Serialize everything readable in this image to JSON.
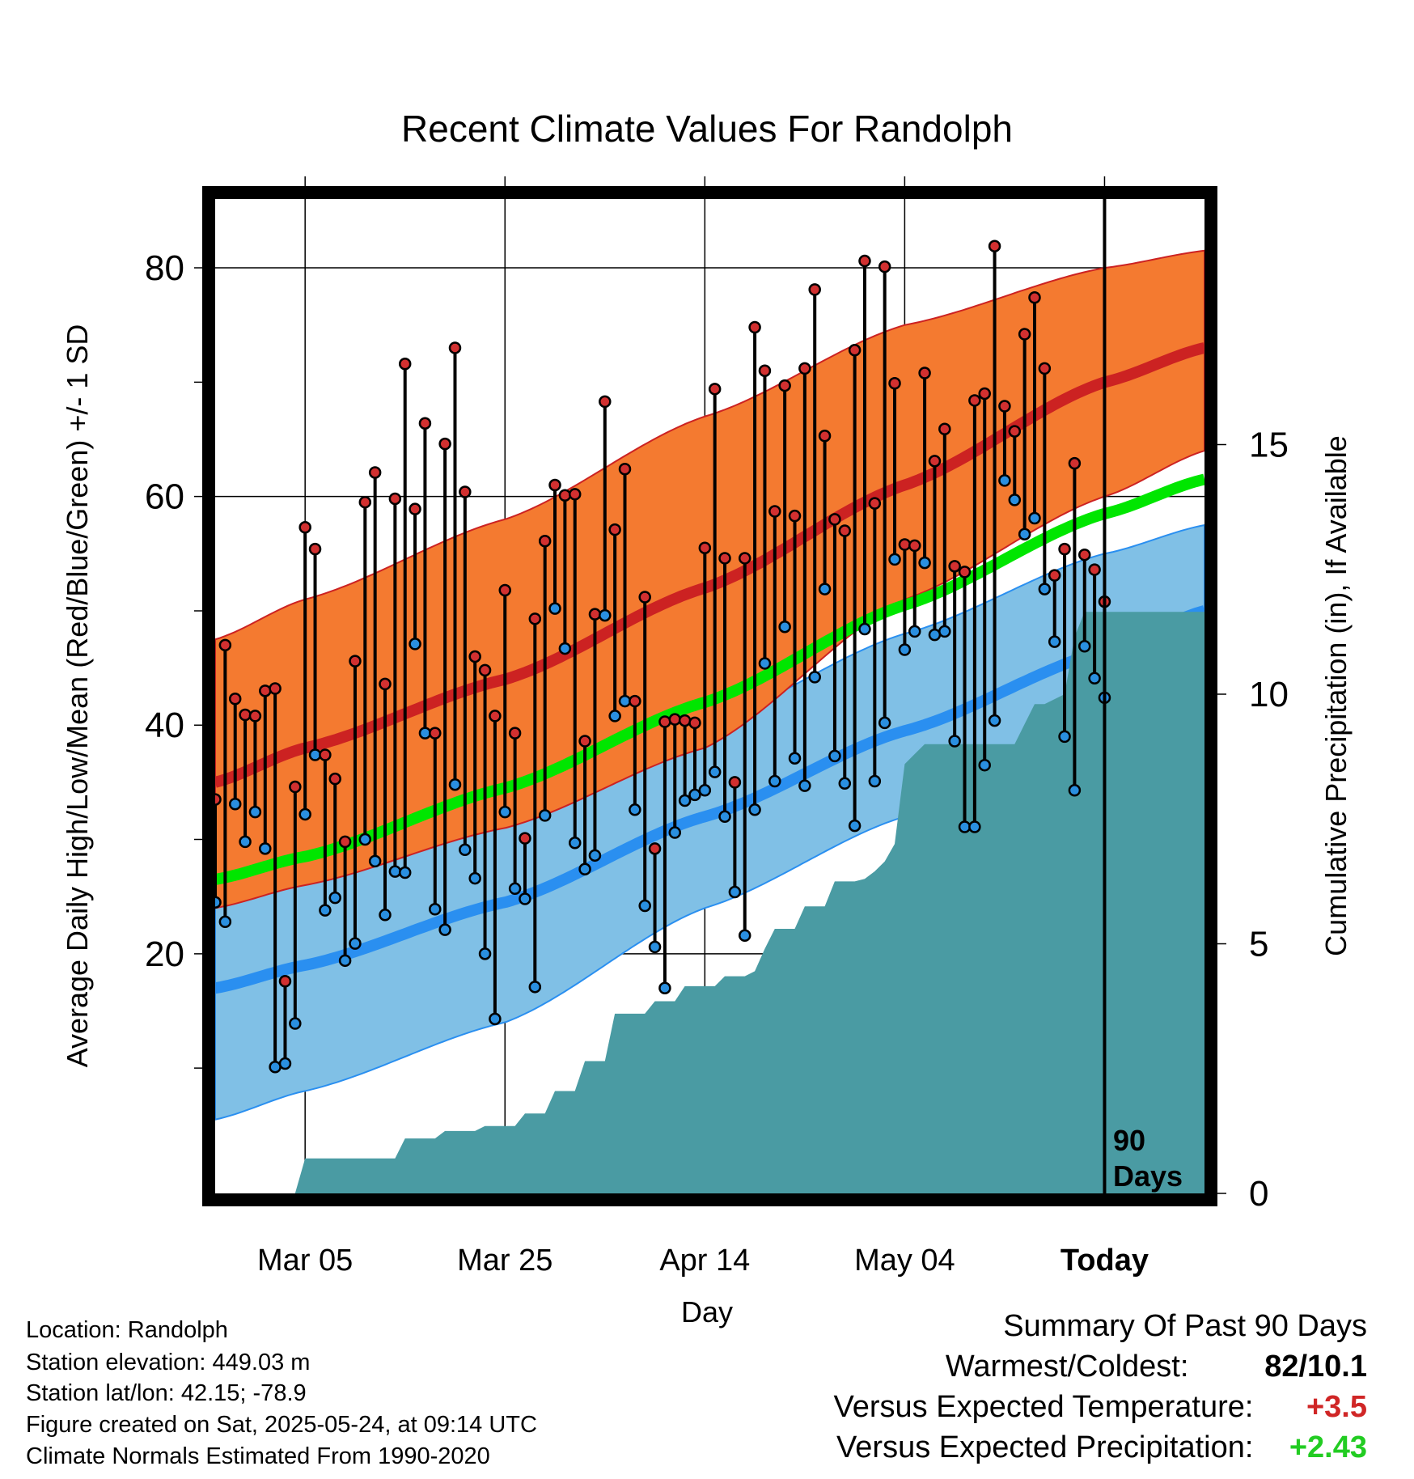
{
  "chart_data": {
    "type": "line",
    "title": "Recent Climate Values For Randolph",
    "xlabel": "Day",
    "ylabel": "Average Daily High/Low/Mean (Red/Blue/Green) +/- 1 SD",
    "ylabel_right": "Cumulative Precipitation (in), If Available",
    "x_ticks": [
      "Mar 05",
      "Mar 25",
      "Apr 14",
      "May 04",
      "Today"
    ],
    "y_ticks": [
      "20",
      "40",
      "60",
      "80"
    ],
    "y2_ticks": [
      "0",
      "5",
      "10",
      "15"
    ],
    "ylim": [
      0,
      88
    ],
    "y2lim": [
      0,
      15
    ],
    "grid": true,
    "x_start": "2025-02-24",
    "x_end": "2025-06-03",
    "today": "2025-05-24",
    "today_label": [
      "90",
      "Days"
    ],
    "colors": {
      "high_band": "#f47a30",
      "high_line": "#cc2222",
      "low_band": "#80c0e6",
      "low_line": "#2a8ff0",
      "mean_line": "#00e600",
      "precip": "#4a9ba3",
      "high_dot": "#d23030",
      "low_dot": "#2a8fe0"
    },
    "normals": {
      "x": [
        "2025-02-24",
        "2025-03-05",
        "2025-03-25",
        "2025-04-14",
        "2025-05-04",
        "2025-05-24",
        "2025-06-03"
      ],
      "high_mean": [
        35,
        38,
        44,
        52,
        61,
        70,
        73
      ],
      "high_upper": [
        47.5,
        51,
        58,
        67,
        75,
        80,
        81.5
      ],
      "high_lower": [
        24,
        26,
        31,
        38,
        51,
        60,
        64
      ],
      "low_mean": [
        17,
        19,
        24.5,
        32,
        39.5,
        46.5,
        50
      ],
      "low_upper": [
        28.5,
        31,
        35,
        40,
        48,
        55,
        57.5
      ],
      "low_lower": [
        5.5,
        8,
        14,
        24,
        32,
        38.5,
        42
      ],
      "mean": [
        26.5,
        28.5,
        34.5,
        42,
        50.5,
        58.5,
        61.5
      ]
    },
    "days": [
      {
        "date": "2025-02-24",
        "high": 33.5,
        "low": 24.5
      },
      {
        "date": "2025-02-25",
        "high": 47.0,
        "low": 22.8
      },
      {
        "date": "2025-02-26",
        "high": 42.3,
        "low": 33.1
      },
      {
        "date": "2025-02-27",
        "high": 40.9,
        "low": 29.8
      },
      {
        "date": "2025-02-28",
        "high": 40.8,
        "low": 32.4
      },
      {
        "date": "2025-03-01",
        "high": 43.0,
        "low": 29.2
      },
      {
        "date": "2025-03-02",
        "high": 43.2,
        "low": 10.1
      },
      {
        "date": "2025-03-03",
        "high": 17.6,
        "low": 10.4
      },
      {
        "date": "2025-03-04",
        "high": 34.6,
        "low": 13.9
      },
      {
        "date": "2025-03-05",
        "high": 57.3,
        "low": 32.2
      },
      {
        "date": "2025-03-06",
        "high": 55.4,
        "low": 37.4
      },
      {
        "date": "2025-03-07",
        "high": 37.4,
        "low": 23.8
      },
      {
        "date": "2025-03-08",
        "high": 35.3,
        "low": 24.9
      },
      {
        "date": "2025-03-09",
        "high": 29.8,
        "low": 19.4
      },
      {
        "date": "2025-03-10",
        "high": 45.6,
        "low": 20.9
      },
      {
        "date": "2025-03-11",
        "high": 59.5,
        "low": 30.0
      },
      {
        "date": "2025-03-12",
        "high": 62.1,
        "low": 28.1
      },
      {
        "date": "2025-03-13",
        "high": 43.6,
        "low": 23.4
      },
      {
        "date": "2025-03-14",
        "high": 59.8,
        "low": 27.2
      },
      {
        "date": "2025-03-15",
        "high": 71.6,
        "low": 27.1
      },
      {
        "date": "2025-03-16",
        "high": 58.9,
        "low": 47.1
      },
      {
        "date": "2025-03-17",
        "high": 66.4,
        "low": 39.3
      },
      {
        "date": "2025-03-18",
        "high": 39.3,
        "low": 23.9
      },
      {
        "date": "2025-03-19",
        "high": 64.6,
        "low": 22.1
      },
      {
        "date": "2025-03-20",
        "high": 73.0,
        "low": 34.8
      },
      {
        "date": "2025-03-21",
        "high": 60.4,
        "low": 29.1
      },
      {
        "date": "2025-03-22",
        "high": 46.0,
        "low": 26.6
      },
      {
        "date": "2025-03-23",
        "high": 44.8,
        "low": 20.0
      },
      {
        "date": "2025-03-24",
        "high": 40.8,
        "low": 14.3
      },
      {
        "date": "2025-03-25",
        "high": 51.8,
        "low": 32.4
      },
      {
        "date": "2025-03-26",
        "high": 39.3,
        "low": 25.7
      },
      {
        "date": "2025-03-27",
        "high": 30.1,
        "low": 24.8
      },
      {
        "date": "2025-03-28",
        "high": 49.3,
        "low": 17.1
      },
      {
        "date": "2025-03-29",
        "high": 56.1,
        "low": 32.1
      },
      {
        "date": "2025-03-30",
        "high": 61.0,
        "low": 50.2
      },
      {
        "date": "2025-03-31",
        "high": 60.1,
        "low": 46.7
      },
      {
        "date": "2025-04-01",
        "high": 60.2,
        "low": 29.7
      },
      {
        "date": "2025-04-02",
        "high": 38.6,
        "low": 27.4
      },
      {
        "date": "2025-04-03",
        "high": 49.7,
        "low": 28.6
      },
      {
        "date": "2025-04-04",
        "high": 68.3,
        "low": 49.6
      },
      {
        "date": "2025-04-05",
        "high": 57.1,
        "low": 40.8
      },
      {
        "date": "2025-04-06",
        "high": 62.4,
        "low": 42.1
      },
      {
        "date": "2025-04-07",
        "high": 42.1,
        "low": 32.6
      },
      {
        "date": "2025-04-08",
        "high": 51.2,
        "low": 24.2
      },
      {
        "date": "2025-04-09",
        "high": 29.2,
        "low": 20.6
      },
      {
        "date": "2025-04-10",
        "high": 40.3,
        "low": 17.0
      },
      {
        "date": "2025-04-11",
        "high": 40.5,
        "low": 30.6
      },
      {
        "date": "2025-04-12",
        "high": 40.4,
        "low": 33.4
      },
      {
        "date": "2025-04-13",
        "high": 40.2,
        "low": 33.9
      },
      {
        "date": "2025-04-14",
        "high": 55.5,
        "low": 34.3
      },
      {
        "date": "2025-04-15",
        "high": 69.4,
        "low": 35.9
      },
      {
        "date": "2025-04-16",
        "high": 54.6,
        "low": 32.0
      },
      {
        "date": "2025-04-17",
        "high": 35.0,
        "low": 25.4
      },
      {
        "date": "2025-04-18",
        "high": 54.6,
        "low": 21.6
      },
      {
        "date": "2025-04-19",
        "high": 74.8,
        "low": 32.6
      },
      {
        "date": "2025-04-20",
        "high": 71.0,
        "low": 45.4
      },
      {
        "date": "2025-04-21",
        "high": 58.7,
        "low": 35.1
      },
      {
        "date": "2025-04-22",
        "high": 69.7,
        "low": 48.6
      },
      {
        "date": "2025-04-23",
        "high": 58.3,
        "low": 37.1
      },
      {
        "date": "2025-04-24",
        "high": 71.2,
        "low": 34.7
      },
      {
        "date": "2025-04-25",
        "high": 78.1,
        "low": 44.2
      },
      {
        "date": "2025-04-26",
        "high": 65.3,
        "low": 51.9
      },
      {
        "date": "2025-04-27",
        "high": 58.0,
        "low": 37.3
      },
      {
        "date": "2025-04-28",
        "high": 57.0,
        "low": 34.9
      },
      {
        "date": "2025-04-29",
        "high": 72.8,
        "low": 31.2
      },
      {
        "date": "2025-04-30",
        "high": 80.6,
        "low": 48.4
      },
      {
        "date": "2025-05-01",
        "high": 59.4,
        "low": 35.1
      },
      {
        "date": "2025-05-02",
        "high": 80.1,
        "low": 40.2
      },
      {
        "date": "2025-05-03",
        "high": 69.9,
        "low": 54.5
      },
      {
        "date": "2025-05-04",
        "high": 55.8,
        "low": 46.6
      },
      {
        "date": "2025-05-05",
        "high": 55.7,
        "low": 48.2
      },
      {
        "date": "2025-05-06",
        "high": 70.8,
        "low": 54.2
      },
      {
        "date": "2025-05-07",
        "high": 63.1,
        "low": 47.9
      },
      {
        "date": "2025-05-08",
        "high": 65.9,
        "low": 48.2
      },
      {
        "date": "2025-05-09",
        "high": 53.9,
        "low": 38.6
      },
      {
        "date": "2025-05-10",
        "high": 53.4,
        "low": 31.1
      },
      {
        "date": "2025-05-11",
        "high": 68.4,
        "low": 31.1
      },
      {
        "date": "2025-05-12",
        "high": 69.0,
        "low": 36.5
      },
      {
        "date": "2025-05-13",
        "high": 81.9,
        "low": 40.4
      },
      {
        "date": "2025-05-14",
        "high": 67.9,
        "low": 61.4
      },
      {
        "date": "2025-05-15",
        "high": 65.7,
        "low": 59.7
      },
      {
        "date": "2025-05-16",
        "high": 74.2,
        "low": 56.7
      },
      {
        "date": "2025-05-17",
        "high": 77.4,
        "low": 58.1
      },
      {
        "date": "2025-05-18",
        "high": 71.2,
        "low": 51.9
      },
      {
        "date": "2025-05-19",
        "high": 53.1,
        "low": 47.3
      },
      {
        "date": "2025-05-20",
        "high": 55.4,
        "low": 39.0
      },
      {
        "date": "2025-05-21",
        "high": 62.9,
        "low": 34.3
      },
      {
        "date": "2025-05-22",
        "high": 54.9,
        "low": 46.9
      },
      {
        "date": "2025-05-23",
        "high": 53.6,
        "low": 44.1
      },
      {
        "date": "2025-05-24",
        "high": 50.8,
        "low": 42.4
      }
    ],
    "precip": {
      "x": [
        "2025-02-24",
        "2025-03-04",
        "2025-03-05",
        "2025-03-14",
        "2025-03-15",
        "2025-03-18",
        "2025-03-19",
        "2025-03-22",
        "2025-03-23",
        "2025-03-26",
        "2025-03-27",
        "2025-03-29",
        "2025-03-30",
        "2025-04-01",
        "2025-04-02",
        "2025-04-04",
        "2025-04-05",
        "2025-04-08",
        "2025-04-09",
        "2025-04-11",
        "2025-04-12",
        "2025-04-15",
        "2025-04-16",
        "2025-04-18",
        "2025-04-19",
        "2025-04-20",
        "2025-04-21",
        "2025-04-23",
        "2025-04-24",
        "2025-04-26",
        "2025-04-27",
        "2025-04-29",
        "2025-04-30",
        "2025-05-01",
        "2025-05-02",
        "2025-05-03",
        "2025-05-04",
        "2025-05-05",
        "2025-05-06",
        "2025-05-15",
        "2025-05-16",
        "2025-05-17",
        "2025-05-18",
        "2025-05-20",
        "2025-05-21",
        "2025-05-22",
        "2025-06-03"
      ],
      "cum": [
        0,
        0,
        0.7,
        0.7,
        1.1,
        1.1,
        1.25,
        1.25,
        1.35,
        1.35,
        1.6,
        1.6,
        2.05,
        2.05,
        2.65,
        2.65,
        3.6,
        3.6,
        3.85,
        3.85,
        4.15,
        4.15,
        4.35,
        4.35,
        4.45,
        4.9,
        5.3,
        5.3,
        5.75,
        5.75,
        6.25,
        6.25,
        6.3,
        6.45,
        6.65,
        7.0,
        8.6,
        8.8,
        9.0,
        9.0,
        9.4,
        9.8,
        9.8,
        10.0,
        11.15,
        11.65,
        11.65
      ]
    }
  },
  "footer": {
    "location": "Location: Randolph",
    "elevation": "Station elevation: 449.03 m",
    "latlon": "Station lat/lon: 42.15; -78.9",
    "created": "Figure created on Sat, 2025-05-24, at 09:14 UTC",
    "normals": "Climate Normals Estimated From 1990-2020"
  },
  "summary": {
    "title": "Summary Of Past 90 Days",
    "warm_label": "Warmest/Coldest:",
    "warm_value": "82/10.1",
    "temp_label": "Versus Expected Temperature:",
    "temp_value": "+3.5",
    "temp_color": "#d02626",
    "precip_label": "Versus Expected Precipitation:",
    "precip_value": "+2.43",
    "precip_color": "#22cc22"
  }
}
